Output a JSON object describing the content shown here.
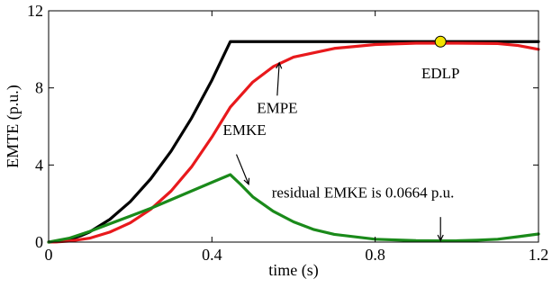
{
  "chart_data": {
    "type": "line",
    "title": "",
    "xlabel": "time (s)",
    "ylabel": "EMTE (p.u.)",
    "xlim": [
      0,
      1.2
    ],
    "ylim": [
      0,
      12
    ],
    "xticks": [
      0,
      0.4,
      0.8,
      1.2
    ],
    "xtick_labels": [
      "0",
      "0.4",
      "0.8",
      "1.2"
    ],
    "yticks": [
      0,
      4,
      8,
      12
    ],
    "ytick_labels": [
      "0",
      "4",
      "8",
      "12"
    ],
    "grid": false,
    "series": [
      {
        "key": "edlp",
        "color": "#000000",
        "x": [
          0,
          0.02,
          0.05,
          0.08,
          0.1,
          0.15,
          0.2,
          0.25,
          0.3,
          0.35,
          0.4,
          0.445,
          0.5,
          0.6,
          0.8,
          1.0,
          1.2
        ],
        "y": [
          0,
          0.02,
          0.13,
          0.34,
          0.52,
          1.18,
          2.1,
          3.28,
          4.72,
          6.43,
          8.4,
          10.4,
          10.4,
          10.4,
          10.4,
          10.4,
          10.4
        ]
      },
      {
        "key": "empe",
        "color": "#e8191c",
        "x": [
          0,
          0.02,
          0.05,
          0.1,
          0.15,
          0.2,
          0.25,
          0.3,
          0.35,
          0.4,
          0.445,
          0.5,
          0.55,
          0.6,
          0.7,
          0.8,
          0.9,
          1.0,
          1.1,
          1.15,
          1.2
        ],
        "y": [
          0,
          0.01,
          0.05,
          0.2,
          0.52,
          1.0,
          1.7,
          2.65,
          3.9,
          5.45,
          7.0,
          8.3,
          9.1,
          9.6,
          10.05,
          10.25,
          10.32,
          10.32,
          10.3,
          10.2,
          10.0
        ]
      },
      {
        "key": "emke",
        "color": "#1a8a1a",
        "x": [
          0,
          0.05,
          0.1,
          0.15,
          0.2,
          0.25,
          0.3,
          0.35,
          0.4,
          0.445,
          0.47,
          0.5,
          0.55,
          0.6,
          0.65,
          0.7,
          0.8,
          0.9,
          0.96,
          1.0,
          1.05,
          1.1,
          1.15,
          1.2
        ],
        "y": [
          0,
          0.2,
          0.55,
          0.95,
          1.35,
          1.75,
          2.2,
          2.65,
          3.1,
          3.5,
          3.0,
          2.35,
          1.6,
          1.05,
          0.65,
          0.4,
          0.15,
          0.075,
          0.0664,
          0.07,
          0.1,
          0.15,
          0.28,
          0.42
        ]
      }
    ],
    "annotations": [
      {
        "key": "edlp_label",
        "text": "EDLP",
        "x": 0.96,
        "y": 8.5,
        "anchor": "middle"
      },
      {
        "key": "empe_label",
        "text": "EMPE",
        "x": 0.56,
        "y": 6.7,
        "anchor": "middle"
      },
      {
        "key": "emke_label",
        "text": "EMKE",
        "x": 0.48,
        "y": 5.55,
        "anchor": "middle"
      },
      {
        "key": "residual_label",
        "text": "residual EMKE is 0.0664 p.u.",
        "x": 0.77,
        "y": 2.3,
        "anchor": "middle"
      }
    ],
    "arrows": [
      {
        "key": "empe_arrow",
        "from": [
          0.56,
          7.6
        ],
        "to": [
          0.565,
          9.3
        ]
      },
      {
        "key": "emke_arrow",
        "from": [
          0.46,
          4.55
        ],
        "to": [
          0.49,
          3.0
        ]
      },
      {
        "key": "residual_arrow",
        "from": [
          0.96,
          1.3
        ],
        "to": [
          0.96,
          0.08
        ]
      }
    ],
    "marker": {
      "key": "edlp_marker",
      "x": 0.96,
      "y": 10.4,
      "color": "#f2e300"
    }
  }
}
